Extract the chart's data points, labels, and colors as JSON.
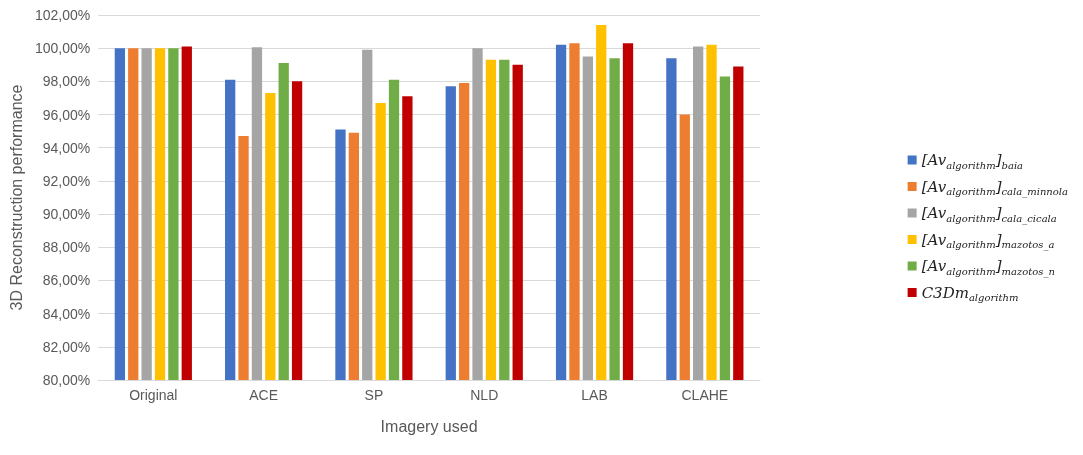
{
  "chart_data": {
    "type": "bar",
    "xlabel": "Imagery used",
    "ylabel": "3D Reconstruction performance",
    "categories": [
      "Original",
      "ACE",
      "SP",
      "NLD",
      "LAB",
      "CLAHE"
    ],
    "series": [
      {
        "name": "[Av$_{algorithm}$]$_{baia}$",
        "color": "#4472c4",
        "values": [
          100.0,
          98.1,
          95.1,
          97.7,
          100.2,
          99.4
        ]
      },
      {
        "name": "[Av$_{algorithm}$]$_{cala_minnola}$",
        "color": "#ed7d31",
        "values": [
          100.0,
          94.7,
          94.9,
          97.9,
          100.3,
          96.0
        ]
      },
      {
        "name": "[Av$_{algorithm}$]$_{cala_cicala}$",
        "color": "#a5a5a5",
        "values": [
          100.0,
          100.05,
          99.9,
          100.0,
          99.5,
          100.1
        ]
      },
      {
        "name": "[Av$_{algorithm}$]$_{mazotos_a}$",
        "color": "#ffc000",
        "values": [
          100.0,
          97.3,
          96.7,
          99.3,
          101.4,
          100.2
        ]
      },
      {
        "name": "[Av$_{algorithm}$]$_{mazotos_n}$",
        "color": "#70ad47",
        "values": [
          100.0,
          99.1,
          98.1,
          99.3,
          99.4,
          98.3
        ]
      },
      {
        "name": "C3Dm$_{algorithm}$",
        "color": "#c00000",
        "values": [
          100.1,
          98.0,
          97.1,
          99.0,
          100.3,
          98.9
        ]
      }
    ],
    "ylim": [
      80,
      102
    ],
    "yticks": [
      {
        "value": 80,
        "label": "80,00%"
      },
      {
        "value": 82,
        "label": "82,00%"
      },
      {
        "value": 84,
        "label": "84,00%"
      },
      {
        "value": 86,
        "label": "86,00%"
      },
      {
        "value": 88,
        "label": "88,00%"
      },
      {
        "value": 90,
        "label": "90,00%"
      },
      {
        "value": 92,
        "label": "92,00%"
      },
      {
        "value": 94,
        "label": "94,00%"
      },
      {
        "value": 96,
        "label": "96,00%"
      },
      {
        "value": 98,
        "label": "98,00%"
      },
      {
        "value": 100,
        "label": "100,00%"
      },
      {
        "value": 102,
        "label": "102,00%"
      }
    ],
    "grid": "y",
    "legend": "right"
  }
}
